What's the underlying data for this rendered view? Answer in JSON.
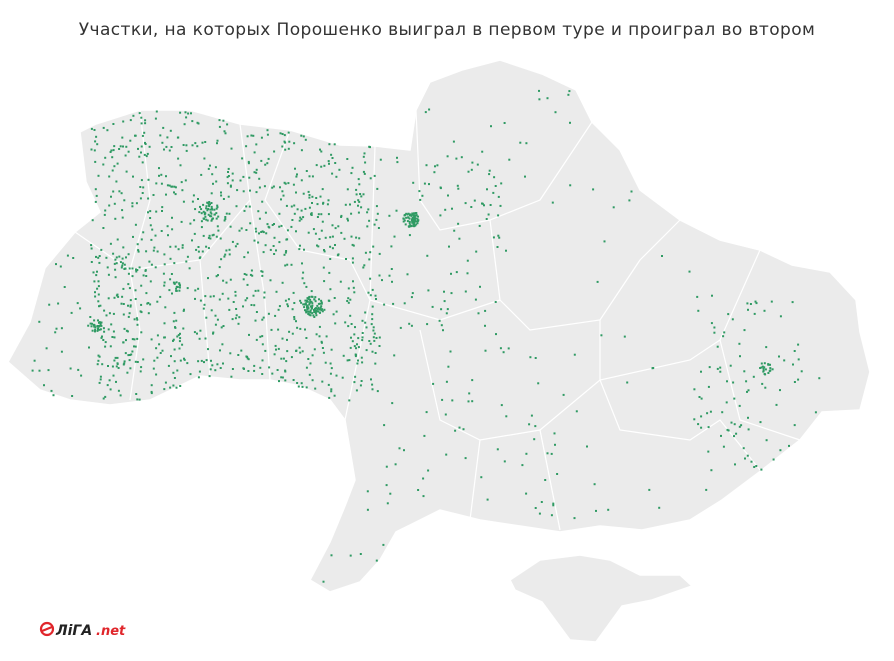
{
  "title": "Участки, на которых Порошенко выиграл в первом туре и проиграл во втором",
  "logo": {
    "brand": "ЛіГА",
    "domain": ".net"
  }
}
